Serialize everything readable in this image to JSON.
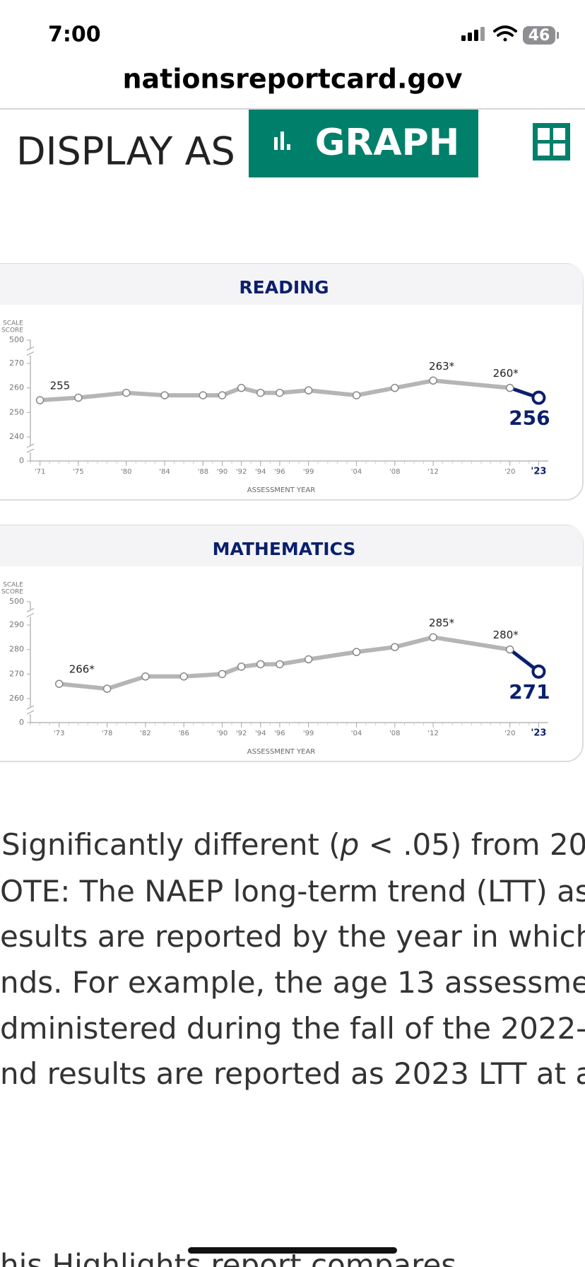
{
  "status": {
    "time": "7:00",
    "battery": "46"
  },
  "url": "nationsreportcard.gov",
  "display": {
    "label": "DISPLAY AS",
    "button": "GRAPH"
  },
  "chart_data": [
    {
      "type": "line",
      "title": "READING",
      "y_label": [
        "SCALE",
        "SCORE"
      ],
      "x_label": "ASSESSMENT YEAR",
      "x": [
        1971,
        1975,
        1980,
        1984,
        1988,
        1990,
        1992,
        1994,
        1996,
        1999,
        2004,
        2008,
        2012,
        2020,
        2023
      ],
      "values": [
        255,
        256,
        258,
        257,
        257,
        257,
        260,
        258,
        258,
        259,
        257,
        260,
        263,
        260,
        256
      ],
      "value_labels": [
        "255",
        null,
        null,
        null,
        null,
        null,
        null,
        null,
        null,
        null,
        null,
        null,
        "263*",
        "260*",
        "256"
      ],
      "color": "#b5b5b5",
      "highlight_color": "#0b1f6e",
      "xlim": [
        1970,
        2024
      ],
      "xticks": [
        {
          "value": 1971,
          "label": "'71"
        },
        {
          "value": 1975,
          "label": "'75"
        },
        {
          "value": 1980,
          "label": "'80"
        },
        {
          "value": 1984,
          "label": "'84"
        },
        {
          "value": 1988,
          "label": "'88"
        },
        {
          "value": 1990,
          "label": "'90"
        },
        {
          "value": 1992,
          "label": "'92"
        },
        {
          "value": 1994,
          "label": "'94"
        },
        {
          "value": 1996,
          "label": "'96"
        },
        {
          "value": 1999,
          "label": "'99"
        },
        {
          "value": 2004,
          "label": "'04"
        },
        {
          "value": 2008,
          "label": "'08"
        },
        {
          "value": 2012,
          "label": "'12"
        },
        {
          "value": 2020,
          "label": "'20"
        },
        {
          "value": 2023,
          "label": "'23"
        }
      ],
      "ylim": [
        0,
        500
      ],
      "yticks": [
        0,
        240,
        250,
        260,
        270,
        500
      ],
      "axis_break": true,
      "grid": false
    },
    {
      "type": "line",
      "title": "MATHEMATICS",
      "y_label": [
        "SCALE",
        "SCORE"
      ],
      "x_label": "ASSESSMENT YEAR",
      "x": [
        1973,
        1978,
        1982,
        1986,
        1990,
        1992,
        1994,
        1996,
        1999,
        2004,
        2008,
        2012,
        2020,
        2023
      ],
      "values": [
        266,
        264,
        269,
        269,
        270,
        273,
        274,
        274,
        276,
        279,
        281,
        285,
        280,
        271
      ],
      "value_labels": [
        "266*",
        null,
        null,
        null,
        null,
        null,
        null,
        null,
        null,
        null,
        null,
        "285*",
        "280*",
        "271"
      ],
      "color": "#b5b5b5",
      "highlight_color": "#0b1f6e",
      "xlim": [
        1970,
        2024
      ],
      "xticks": [
        {
          "value": 1973,
          "label": "'73"
        },
        {
          "value": 1978,
          "label": "'78"
        },
        {
          "value": 1982,
          "label": "'82"
        },
        {
          "value": 1986,
          "label": "'86"
        },
        {
          "value": 1990,
          "label": "'90"
        },
        {
          "value": 1992,
          "label": "'92"
        },
        {
          "value": 1994,
          "label": "'94"
        },
        {
          "value": 1996,
          "label": "'96"
        },
        {
          "value": 1999,
          "label": "'99"
        },
        {
          "value": 2004,
          "label": "'04"
        },
        {
          "value": 2008,
          "label": "'08"
        },
        {
          "value": 2012,
          "label": "'12"
        },
        {
          "value": 2020,
          "label": "'20"
        },
        {
          "value": 2023,
          "label": "'23"
        }
      ],
      "ylim": [
        0,
        500
      ],
      "yticks": [
        0,
        260,
        270,
        280,
        290,
        500
      ],
      "axis_break": true,
      "grid": false
    }
  ],
  "footnote": [
    [
      "Significantly different (",
      "p",
      " < .05) from 202"
    ],
    [
      "OTE: The NAEP long-term trend (LTT) as"
    ],
    [
      "esults are reported by the year in which"
    ],
    [
      "nds. For example, the age 13 assessme"
    ],
    [
      "dministered during the fall of the 2022-"
    ],
    [
      "nd results are reported as 2023 LTT at a"
    ]
  ],
  "next_paragraph": "his Highlights report compares"
}
